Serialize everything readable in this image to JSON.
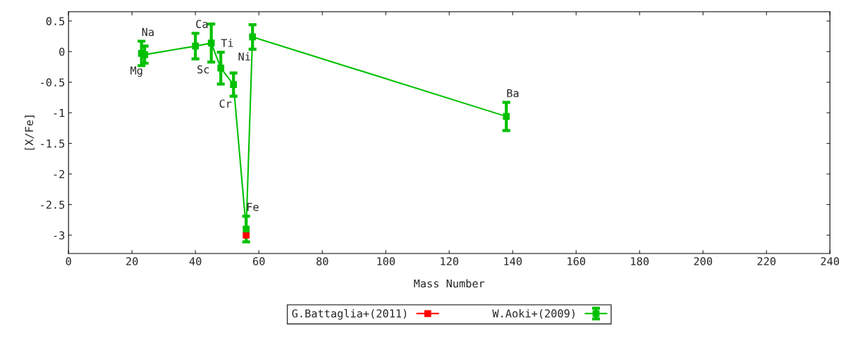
{
  "chart_data": {
    "type": "line",
    "xlabel": "Mass Number",
    "ylabel": "[X/Fe]",
    "xlim": [
      0,
      240
    ],
    "xticks": [
      0,
      20,
      40,
      60,
      80,
      100,
      120,
      140,
      160,
      180,
      200,
      220,
      240
    ],
    "ylim": [
      -3.3,
      0.65
    ],
    "yticks": [
      0.5,
      0,
      -0.5,
      -1,
      -1.5,
      -2,
      -2.5,
      -3
    ],
    "grid": false,
    "legend": "bottom",
    "marker": "square",
    "line_style": "solid",
    "series": [
      {
        "name": "G.Battaglia+(2011)",
        "color": "#ff0000",
        "x": [
          56
        ],
        "values": [
          -3.0
        ]
      },
      {
        "name": "W.Aoki+(2009)",
        "color": "#00c000",
        "x": [
          23,
          24,
          40,
          45,
          48,
          52,
          56,
          58,
          138
        ],
        "values": [
          -0.03,
          -0.05,
          0.09,
          0.14,
          -0.27,
          -0.54,
          -2.9,
          0.24,
          -1.06
        ],
        "errors": [
          0.2,
          0.14,
          0.21,
          0.31,
          0.26,
          0.19,
          0.21,
          0.2,
          0.23
        ],
        "value_labels": [
          "Na",
          "Mg",
          "Ca",
          "Sc",
          "Ti",
          "Cr",
          "Fe",
          "Ni",
          "Ba"
        ]
      }
    ]
  }
}
